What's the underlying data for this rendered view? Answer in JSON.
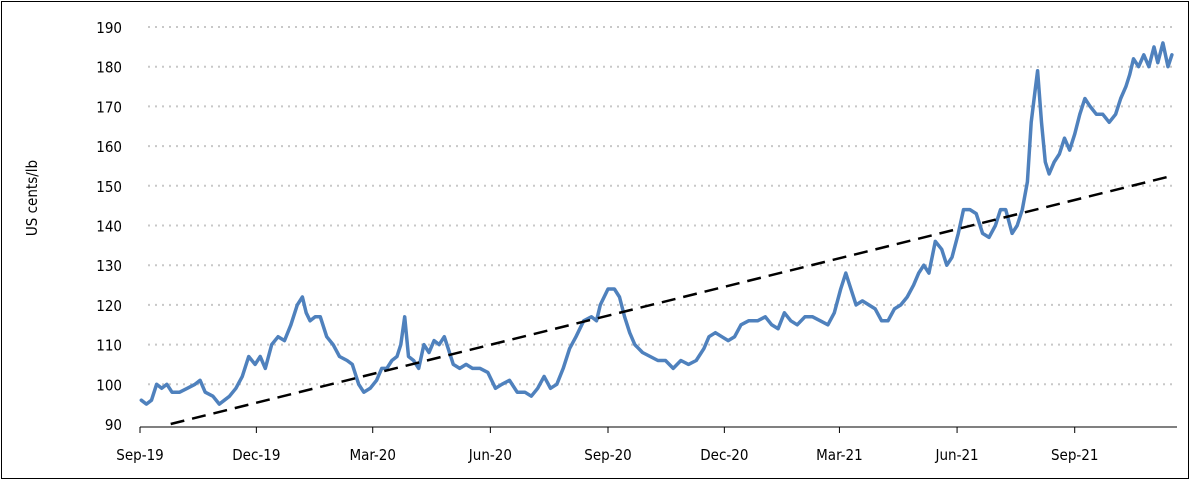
{
  "chart_data": {
    "type": "line",
    "title": "",
    "xlabel": "",
    "ylabel": "US cents/lb",
    "ylim": [
      90,
      190
    ],
    "yticks": [
      "90",
      "100",
      "110",
      "120",
      "130",
      "140",
      "150",
      "160",
      "170",
      "180",
      "190"
    ],
    "xticks": [
      "Sep-19",
      "Dec-19",
      "Mar-20",
      "Jun-20",
      "Sep-20",
      "Dec-20",
      "Mar-21",
      "Jun-21",
      "Sep-21"
    ],
    "grid": "horizontal dotted",
    "legend": "none",
    "series": [
      {
        "style": "solid",
        "color": "#4f81bd",
        "points": [
          [
            "2019-09-02",
            96
          ],
          [
            "2019-09-06",
            95
          ],
          [
            "2019-09-10",
            96
          ],
          [
            "2019-09-14",
            100
          ],
          [
            "2019-09-18",
            99
          ],
          [
            "2019-09-22",
            100
          ],
          [
            "2019-09-26",
            98
          ],
          [
            "2019-10-02",
            98
          ],
          [
            "2019-10-08",
            99
          ],
          [
            "2019-10-14",
            100
          ],
          [
            "2019-10-18",
            101
          ],
          [
            "2019-10-22",
            98
          ],
          [
            "2019-10-28",
            97
          ],
          [
            "2019-11-02",
            95
          ],
          [
            "2019-11-06",
            96
          ],
          [
            "2019-11-10",
            97
          ],
          [
            "2019-11-15",
            99
          ],
          [
            "2019-11-20",
            102
          ],
          [
            "2019-11-25",
            107
          ],
          [
            "2019-11-30",
            105
          ],
          [
            "2019-12-04",
            107
          ],
          [
            "2019-12-08",
            104
          ],
          [
            "2019-12-13",
            110
          ],
          [
            "2019-12-18",
            112
          ],
          [
            "2019-12-23",
            111
          ],
          [
            "2019-12-28",
            115
          ],
          [
            "2020-01-02",
            120
          ],
          [
            "2020-01-06",
            122
          ],
          [
            "2020-01-09",
            118
          ],
          [
            "2020-01-12",
            116
          ],
          [
            "2020-01-16",
            117
          ],
          [
            "2020-01-20",
            117
          ],
          [
            "2020-01-25",
            112
          ],
          [
            "2020-01-30",
            110
          ],
          [
            "2020-02-04",
            107
          ],
          [
            "2020-02-10",
            106
          ],
          [
            "2020-02-14",
            105
          ],
          [
            "2020-02-19",
            100
          ],
          [
            "2020-02-23",
            98
          ],
          [
            "2020-02-28",
            99
          ],
          [
            "2020-03-04",
            101
          ],
          [
            "2020-03-08",
            104
          ],
          [
            "2020-03-12",
            104
          ],
          [
            "2020-03-16",
            106
          ],
          [
            "2020-03-20",
            107
          ],
          [
            "2020-03-23",
            110
          ],
          [
            "2020-03-26",
            117
          ],
          [
            "2020-03-29",
            107
          ],
          [
            "2020-04-02",
            106
          ],
          [
            "2020-04-06",
            104
          ],
          [
            "2020-04-10",
            110
          ],
          [
            "2020-04-14",
            108
          ],
          [
            "2020-04-18",
            111
          ],
          [
            "2020-04-22",
            110
          ],
          [
            "2020-04-26",
            112
          ],
          [
            "2020-04-29",
            109
          ],
          [
            "2020-05-03",
            105
          ],
          [
            "2020-05-08",
            104
          ],
          [
            "2020-05-13",
            105
          ],
          [
            "2020-05-18",
            104
          ],
          [
            "2020-05-24",
            104
          ],
          [
            "2020-05-30",
            103
          ],
          [
            "2020-06-05",
            99
          ],
          [
            "2020-06-10",
            100
          ],
          [
            "2020-06-16",
            101
          ],
          [
            "2020-06-22",
            98
          ],
          [
            "2020-06-28",
            98
          ],
          [
            "2020-07-03",
            97
          ],
          [
            "2020-07-08",
            99
          ],
          [
            "2020-07-13",
            102
          ],
          [
            "2020-07-18",
            99
          ],
          [
            "2020-07-23",
            100
          ],
          [
            "2020-07-28",
            104
          ],
          [
            "2020-08-02",
            109
          ],
          [
            "2020-08-07",
            112
          ],
          [
            "2020-08-13",
            116
          ],
          [
            "2020-08-19",
            117
          ],
          [
            "2020-08-23",
            116
          ],
          [
            "2020-08-26",
            120
          ],
          [
            "2020-09-01",
            124
          ],
          [
            "2020-09-06",
            124
          ],
          [
            "2020-09-10",
            122
          ],
          [
            "2020-09-14",
            117
          ],
          [
            "2020-09-18",
            113
          ],
          [
            "2020-09-22",
            110
          ],
          [
            "2020-09-28",
            108
          ],
          [
            "2020-10-04",
            107
          ],
          [
            "2020-10-10",
            106
          ],
          [
            "2020-10-16",
            106
          ],
          [
            "2020-10-22",
            104
          ],
          [
            "2020-10-28",
            106
          ],
          [
            "2020-11-03",
            105
          ],
          [
            "2020-11-09",
            106
          ],
          [
            "2020-11-15",
            109
          ],
          [
            "2020-11-19",
            112
          ],
          [
            "2020-11-24",
            113
          ],
          [
            "2020-11-29",
            112
          ],
          [
            "2020-12-04",
            111
          ],
          [
            "2020-12-09",
            112
          ],
          [
            "2020-12-14",
            115
          ],
          [
            "2020-12-20",
            116
          ],
          [
            "2020-12-27",
            116
          ],
          [
            "2021-01-02",
            117
          ],
          [
            "2021-01-07",
            115
          ],
          [
            "2021-01-12",
            114
          ],
          [
            "2021-01-17",
            118
          ],
          [
            "2021-01-22",
            116
          ],
          [
            "2021-01-27",
            115
          ],
          [
            "2021-02-02",
            117
          ],
          [
            "2021-02-08",
            117
          ],
          [
            "2021-02-14",
            116
          ],
          [
            "2021-02-20",
            115
          ],
          [
            "2021-02-25",
            118
          ],
          [
            "2021-03-02",
            124
          ],
          [
            "2021-03-06",
            128
          ],
          [
            "2021-03-10",
            124
          ],
          [
            "2021-03-14",
            120
          ],
          [
            "2021-03-19",
            121
          ],
          [
            "2021-03-24",
            120
          ],
          [
            "2021-03-29",
            119
          ],
          [
            "2021-04-03",
            116
          ],
          [
            "2021-04-08",
            116
          ],
          [
            "2021-04-13",
            119
          ],
          [
            "2021-04-18",
            120
          ],
          [
            "2021-04-23",
            122
          ],
          [
            "2021-04-28",
            125
          ],
          [
            "2021-05-02",
            128
          ],
          [
            "2021-05-06",
            130
          ],
          [
            "2021-05-10",
            128
          ],
          [
            "2021-05-15",
            136
          ],
          [
            "2021-05-20",
            134
          ],
          [
            "2021-05-24",
            130
          ],
          [
            "2021-05-28",
            132
          ],
          [
            "2021-06-02",
            138
          ],
          [
            "2021-06-06",
            144
          ],
          [
            "2021-06-11",
            144
          ],
          [
            "2021-06-16",
            143
          ],
          [
            "2021-06-21",
            138
          ],
          [
            "2021-06-26",
            137
          ],
          [
            "2021-07-01",
            140
          ],
          [
            "2021-07-05",
            144
          ],
          [
            "2021-07-09",
            144
          ],
          [
            "2021-07-14",
            138
          ],
          [
            "2021-07-18",
            140
          ],
          [
            "2021-07-22",
            144
          ],
          [
            "2021-07-26",
            151
          ],
          [
            "2021-07-29",
            166
          ],
          [
            "2021-08-01",
            174
          ],
          [
            "2021-08-03",
            179
          ],
          [
            "2021-08-06",
            166
          ],
          [
            "2021-08-09",
            156
          ],
          [
            "2021-08-12",
            153
          ],
          [
            "2021-08-16",
            156
          ],
          [
            "2021-08-20",
            158
          ],
          [
            "2021-08-24",
            162
          ],
          [
            "2021-08-28",
            159
          ],
          [
            "2021-09-01",
            163
          ],
          [
            "2021-09-05",
            168
          ],
          [
            "2021-09-09",
            172
          ],
          [
            "2021-09-13",
            170
          ],
          [
            "2021-09-18",
            168
          ],
          [
            "2021-09-23",
            168
          ],
          [
            "2021-09-28",
            166
          ],
          [
            "2021-10-03",
            168
          ],
          [
            "2021-10-07",
            172
          ],
          [
            "2021-10-11",
            175
          ],
          [
            "2021-10-14",
            178
          ],
          [
            "2021-10-17",
            182
          ],
          [
            "2021-10-21",
            180
          ],
          [
            "2021-10-25",
            183
          ],
          [
            "2021-10-29",
            180
          ],
          [
            "2021-11-02",
            185
          ],
          [
            "2021-11-05",
            181
          ],
          [
            "2021-11-09",
            186
          ],
          [
            "2021-11-13",
            180
          ],
          [
            "2021-11-16",
            183
          ]
        ]
      },
      {
        "style": "dashed",
        "color": "#000000",
        "points": [
          [
            "2019-09-25",
            90
          ],
          [
            "2021-11-16",
            152.5
          ]
        ]
      }
    ]
  }
}
